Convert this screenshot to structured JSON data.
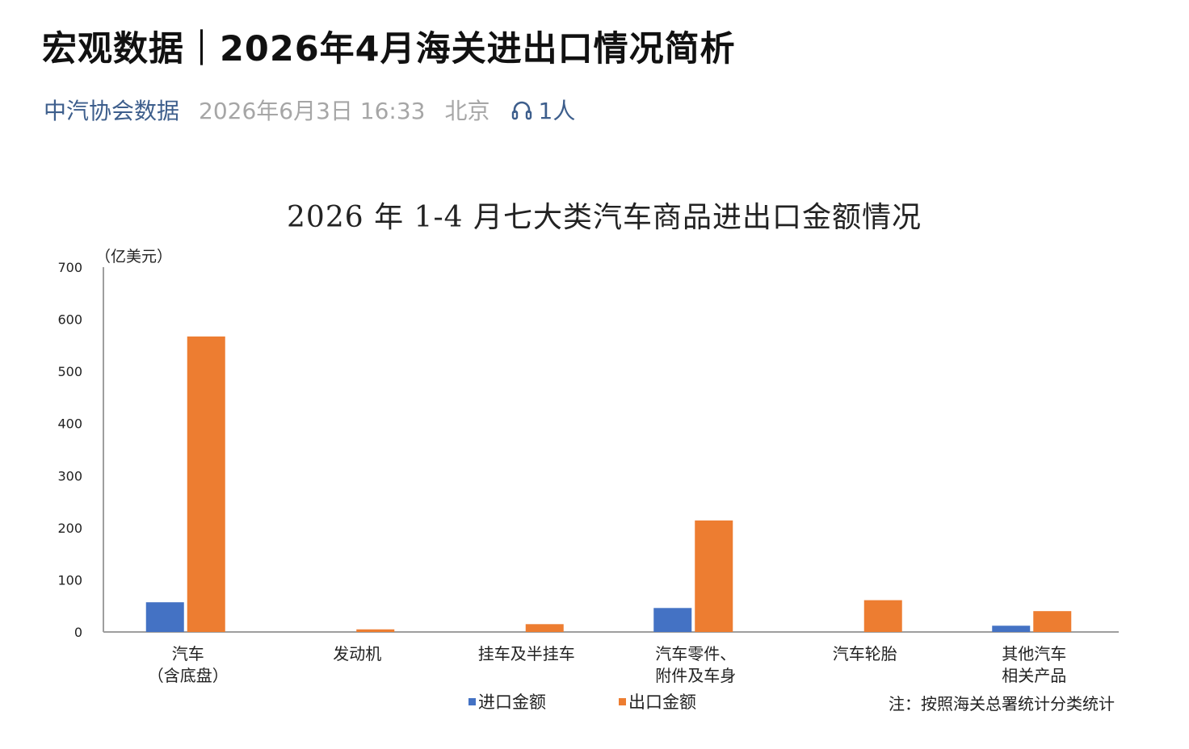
{
  "article": {
    "title": "宏观数据｜2026年4月海关进出口情况简析",
    "account": "中汽协会数据",
    "datetime": "2026年6月3日 16:33",
    "location": "北京",
    "listeners": "1人",
    "listen_icon": "headphones-icon"
  },
  "colors": {
    "import": "#4472c4",
    "export": "#ed7d31",
    "account": "#3d5e8c",
    "meta_gray": "#a6a6a6"
  },
  "chart_data": {
    "type": "bar",
    "title": "2026 年 1-4 月七大类汽车商品进出口金额情况",
    "ylabel": "（亿美元）",
    "ylim": [
      0,
      700
    ],
    "yticks": [
      "0",
      "100",
      "200",
      "300",
      "400",
      "500",
      "600",
      "700"
    ],
    "categories": [
      [
        "汽车",
        "（含底盘）"
      ],
      [
        "发动机"
      ],
      [
        "挂车及半挂车"
      ],
      [
        "汽车零件、",
        "附件及车身"
      ],
      [
        "汽车轮胎"
      ],
      [
        "其他汽车",
        "相关产品"
      ]
    ],
    "series": [
      {
        "name": "进口金额",
        "values": [
          57,
          0,
          0,
          46,
          0,
          12
        ]
      },
      {
        "name": "出口金额",
        "values": [
          567,
          5,
          15,
          214,
          61,
          40
        ]
      }
    ],
    "legend_position": "bottom",
    "grid": false,
    "note": "注：按照海关总署统计分类统计"
  }
}
